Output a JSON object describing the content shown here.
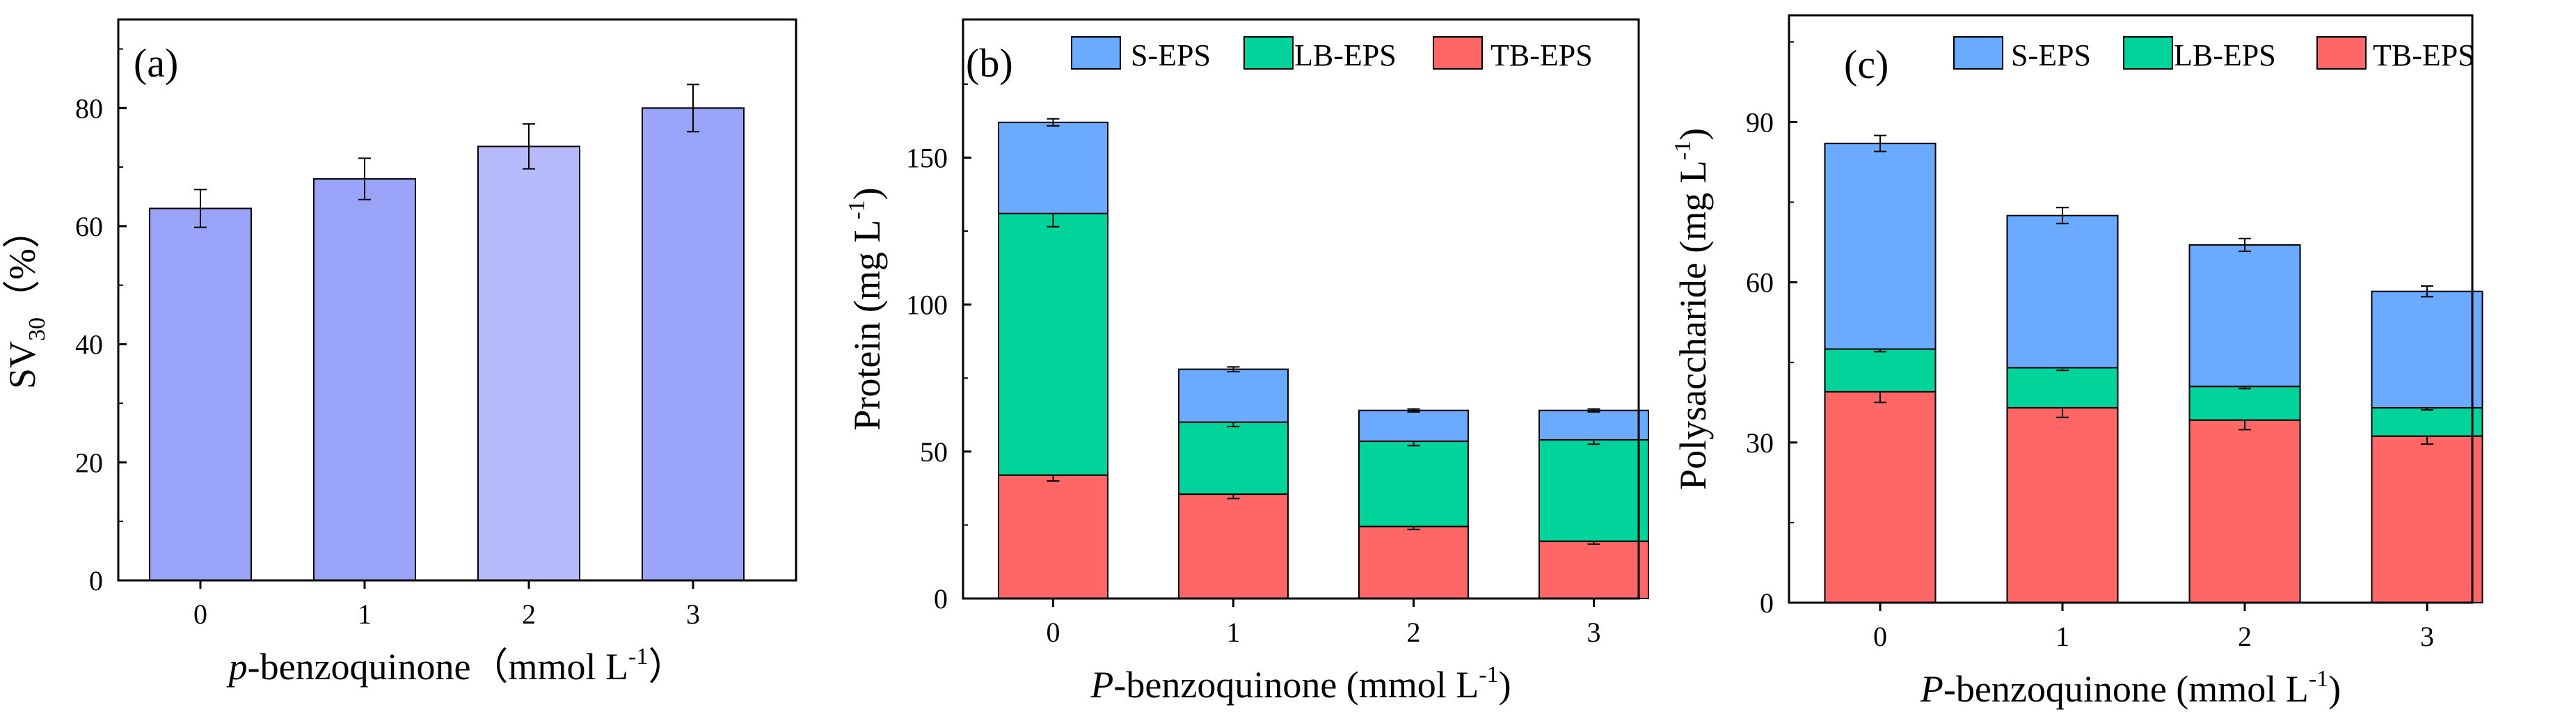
{
  "chart_data": [
    {
      "panel_label": "(a)",
      "type": "bar",
      "categories": [
        "0",
        "1",
        "2",
        "3"
      ],
      "values": [
        63,
        68,
        73.5,
        80
      ],
      "errors": [
        3.2,
        3.5,
        3.8,
        4.0
      ],
      "xlabel": {
        "italic": "p",
        "rest": "-benzoquinone（mmol L",
        "sup": "-1",
        "close": "）"
      },
      "ylabel": {
        "main": "SV",
        "sub": "30",
        "rest": "（%）"
      },
      "ylim": [
        0,
        95
      ],
      "yticks": [
        "0",
        "20",
        "40",
        "60",
        "80"
      ],
      "colors": [
        "#99a3f7",
        "#99a3f7",
        "#b5bbfa",
        "#99a3f7"
      ]
    },
    {
      "panel_label": "(b)",
      "type": "stacked-bar",
      "categories": [
        "0",
        "1",
        "2",
        "3"
      ],
      "series": [
        {
          "name": "TB-EPS",
          "color": "#ff6666",
          "values": [
            42,
            35.5,
            24.5,
            19.5
          ],
          "errors": [
            2.0,
            1.5,
            1.0,
            1.0
          ]
        },
        {
          "name": "LB-EPS",
          "color": "#00d49b",
          "values": [
            89,
            24.5,
            29,
            34.5
          ],
          "errors": [
            4.5,
            1.5,
            1.5,
            1.5
          ]
        },
        {
          "name": "S-EPS",
          "color": "#6aaaff",
          "values": [
            31,
            18,
            10.5,
            10
          ],
          "errors": [
            1.2,
            0.8,
            0.5,
            0.5
          ]
        }
      ],
      "legend_order": [
        "S-EPS",
        "LB-EPS",
        "TB-EPS"
      ],
      "xlabel": {
        "italic": "P",
        "rest": "-benzoquinone (mmol L",
        "sup": "-1",
        "close": ")"
      },
      "ylabel": {
        "main": "Protein (mg L",
        "sup": "-1",
        "close": ")"
      },
      "ylim": [
        0,
        197
      ],
      "yticks": [
        "0",
        "50",
        "100",
        "150"
      ]
    },
    {
      "panel_label": "(c)",
      "type": "stacked-bar",
      "categories": [
        "0",
        "1",
        "2",
        "3"
      ],
      "series": [
        {
          "name": "TB-EPS",
          "color": "#ff6666",
          "values": [
            39.5,
            36.5,
            34.2,
            31.2
          ],
          "errors": [
            2.0,
            1.8,
            1.8,
            1.5
          ]
        },
        {
          "name": "LB-EPS",
          "color": "#00d49b",
          "values": [
            8,
            7.5,
            6.3,
            5.3
          ],
          "errors": [
            0.5,
            0.5,
            0.4,
            0.4
          ]
        },
        {
          "name": "S-EPS",
          "color": "#6aaaff",
          "values": [
            38.5,
            28.5,
            26.5,
            21.8
          ],
          "errors": [
            1.5,
            1.5,
            1.2,
            1.0
          ]
        }
      ],
      "legend_order": [
        "S-EPS",
        "LB-EPS",
        "TB-EPS"
      ],
      "xlabel": {
        "italic": "P",
        "rest": "-benzoquinone (mmol L",
        "sup": "-1",
        "close": ")"
      },
      "ylabel": {
        "main": "Polysaccharide (mg L",
        "sup": "-1",
        "close": ")"
      },
      "ylim": [
        0,
        110
      ],
      "yticks": [
        "0",
        "30",
        "60",
        "90"
      ]
    }
  ]
}
